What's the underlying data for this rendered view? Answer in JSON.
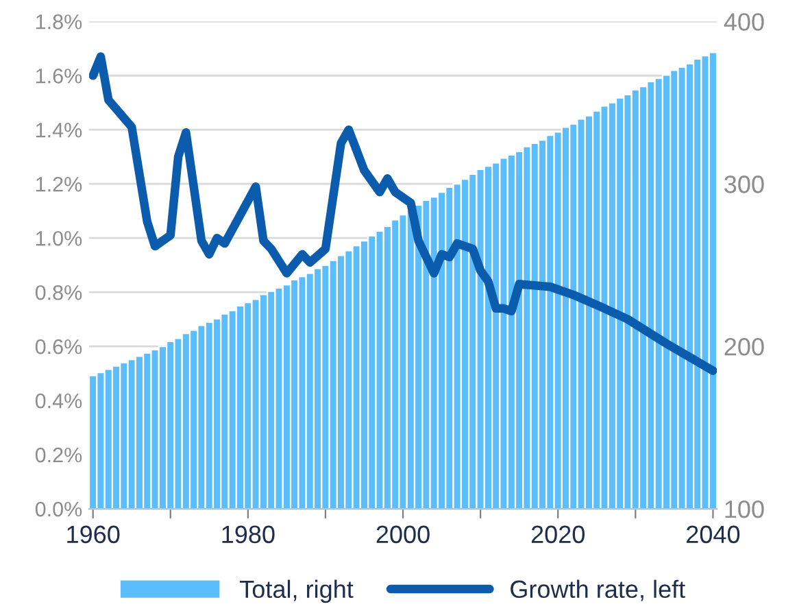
{
  "chart_data": {
    "type": "bar",
    "x": [
      1960,
      1961,
      1962,
      1963,
      1964,
      1965,
      1966,
      1967,
      1968,
      1969,
      1970,
      1971,
      1972,
      1973,
      1974,
      1975,
      1976,
      1977,
      1978,
      1979,
      1980,
      1981,
      1982,
      1983,
      1984,
      1985,
      1986,
      1987,
      1988,
      1989,
      1990,
      1991,
      1992,
      1993,
      1994,
      1995,
      1996,
      1997,
      1998,
      1999,
      2000,
      2001,
      2002,
      2003,
      2004,
      2005,
      2006,
      2007,
      2008,
      2009,
      2010,
      2011,
      2012,
      2013,
      2014,
      2015,
      2016,
      2017,
      2018,
      2019,
      2020,
      2021,
      2022,
      2023,
      2024,
      2025,
      2026,
      2027,
      2028,
      2029,
      2030,
      2031,
      2032,
      2033,
      2034,
      2035,
      2036,
      2037,
      2038,
      2039,
      2040
    ],
    "series": [
      {
        "name": "Total, right",
        "axis": "y2",
        "color": "#5cbdfc",
        "values": [
          182,
          184,
          186,
          188,
          190,
          192,
          194,
          196,
          198,
          200,
          203,
          205,
          208,
          210,
          213,
          215,
          217,
          220,
          222,
          225,
          227,
          229,
          232,
          234,
          236,
          238,
          241,
          243,
          245,
          248,
          250,
          253,
          256,
          259,
          262,
          265,
          268,
          271,
          274,
          278,
          281,
          284,
          287,
          290,
          292,
          295,
          298,
          300,
          303,
          306,
          309,
          311,
          313,
          316,
          318,
          320,
          323,
          325,
          327,
          330,
          332,
          335,
          337,
          340,
          342,
          345,
          348,
          350,
          353,
          355,
          358,
          360,
          363,
          365,
          367,
          370,
          372,
          374,
          377,
          379,
          381
        ]
      },
      {
        "name": "Growth rate, left",
        "type": "line",
        "axis": "y",
        "color": "#0b5cad",
        "line_style": "solid",
        "x": [
          1960,
          1961,
          1962,
          1965,
          1967,
          1968,
          1970,
          1971,
          1972,
          1974,
          1975,
          1976,
          1977,
          1981,
          1982,
          1983,
          1985,
          1987,
          1988,
          1990,
          1992,
          1993,
          1995,
          1997,
          1998,
          1999,
          2001,
          2002,
          2004,
          2005,
          2006,
          2007,
          2009,
          2010,
          2011,
          2012,
          2013,
          2014,
          2015,
          2019,
          2022,
          2026,
          2029,
          2034,
          2040
        ],
        "values": [
          1.6,
          1.67,
          1.51,
          1.41,
          1.06,
          0.97,
          1.01,
          1.3,
          1.39,
          0.99,
          0.94,
          1.0,
          0.98,
          1.19,
          0.99,
          0.96,
          0.87,
          0.94,
          0.91,
          0.96,
          1.35,
          1.4,
          1.25,
          1.17,
          1.22,
          1.17,
          1.13,
          0.99,
          0.87,
          0.94,
          0.93,
          0.98,
          0.96,
          0.88,
          0.84,
          0.74,
          0.74,
          0.73,
          0.83,
          0.82,
          0.79,
          0.74,
          0.7,
          0.61,
          0.51
        ]
      }
    ],
    "xlim": [
      1959.5,
      2040.5
    ],
    "xticks": [
      1960,
      {
        "value": 1970,
        "label": null
      },
      1980,
      {
        "value": 1990,
        "label": null
      },
      2000,
      {
        "value": 2010,
        "label": null
      },
      2020,
      {
        "value": 2030,
        "label": null
      },
      2040
    ],
    "ylim": [
      0,
      1.8
    ],
    "yticks": [
      {
        "value": 0,
        "label": "0.0%"
      },
      {
        "value": 0.2,
        "label": "0.2%"
      },
      {
        "value": 0.4,
        "label": "0.4%"
      },
      {
        "value": 0.6,
        "label": "0.6%"
      },
      {
        "value": 0.8,
        "label": "0.8%"
      },
      {
        "value": 1.0,
        "label": "1.0%"
      },
      {
        "value": 1.2,
        "label": "1.2%"
      },
      {
        "value": 1.4,
        "label": "1.4%"
      },
      {
        "value": 1.6,
        "label": "1.6%"
      },
      {
        "value": 1.8,
        "label": "1.8%"
      }
    ],
    "y2lim": [
      100,
      400
    ],
    "y2ticks": [
      100,
      200,
      300,
      400
    ],
    "grid": "y",
    "legend": "bottom"
  }
}
